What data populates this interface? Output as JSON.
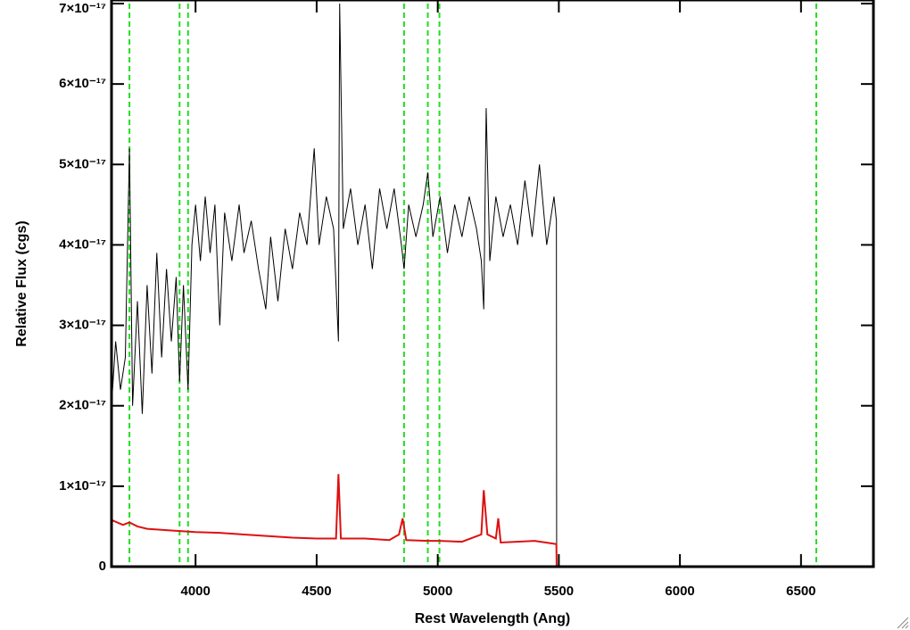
{
  "chart_data": {
    "type": "line",
    "xlabel": "Rest Wavelength (Ang)",
    "ylabel": "Relative Flux (cgs)",
    "xlim": [
      3653,
      6799
    ],
    "ylim": [
      0,
      7e-17
    ],
    "xticks": [
      4000,
      4500,
      5000,
      5500,
      6000,
      6500
    ],
    "yticks": [
      0,
      {
        "value": 1e-17,
        "label": "1×10⁻¹⁷"
      },
      {
        "value": 2e-17,
        "label": "2×10⁻¹⁷"
      },
      {
        "value": 3e-17,
        "label": "3×10⁻¹⁷"
      },
      {
        "value": 4e-17,
        "label": "4×10⁻¹⁷"
      },
      {
        "value": 5e-17,
        "label": "5×10⁻¹⁷"
      },
      {
        "value": 6e-17,
        "label": "6×10⁻¹⁷"
      },
      {
        "value": 7e-17,
        "label": "7×10⁻¹⁷"
      }
    ],
    "vlines": [
      3727,
      3934,
      3969,
      4861,
      4959,
      5007,
      6563
    ],
    "vline_color": "#22dd22",
    "series": [
      {
        "color": "#000000",
        "x": [
          3653,
          3670,
          3690,
          3710,
          3727,
          3740,
          3760,
          3780,
          3800,
          3820,
          3840,
          3860,
          3880,
          3900,
          3920,
          3934,
          3950,
          3969,
          3985,
          4000,
          4020,
          4040,
          4060,
          4080,
          4100,
          4120,
          4150,
          4180,
          4200,
          4230,
          4260,
          4290,
          4310,
          4340,
          4370,
          4400,
          4430,
          4460,
          4490,
          4510,
          4540,
          4570,
          4590,
          4595,
          4610,
          4640,
          4670,
          4700,
          4730,
          4760,
          4790,
          4820,
          4850,
          4861,
          4880,
          4910,
          4940,
          4959,
          4980,
          5010,
          5040,
          5070,
          5100,
          5130,
          5160,
          5180,
          5190,
          5200,
          5215,
          5240,
          5270,
          5300,
          5330,
          5360,
          5390,
          5420,
          5450,
          5480,
          5490,
          5491,
          6799
        ],
        "values": [
          2e-17,
          2.8e-17,
          2.2e-17,
          2.6e-17,
          5.2e-17,
          2e-17,
          3.3e-17,
          1.9e-17,
          3.5e-17,
          2.4e-17,
          3.9e-17,
          2.6e-17,
          3.7e-17,
          2.8e-17,
          3.6e-17,
          2.3e-17,
          3.5e-17,
          2.2e-17,
          4e-17,
          4.5e-17,
          3.8e-17,
          4.6e-17,
          3.9e-17,
          4.5e-17,
          3e-17,
          4.4e-17,
          3.8e-17,
          4.5e-17,
          3.9e-17,
          4.3e-17,
          3.7e-17,
          3.2e-17,
          4.1e-17,
          3.3e-17,
          4.2e-17,
          3.7e-17,
          4.4e-17,
          4e-17,
          5.2e-17,
          4e-17,
          4.6e-17,
          4.2e-17,
          2.8e-17,
          7e-17,
          4.2e-17,
          4.7e-17,
          4e-17,
          4.5e-17,
          3.7e-17,
          4.7e-17,
          4.2e-17,
          4.7e-17,
          4e-17,
          3.7e-17,
          4.5e-17,
          4.1e-17,
          4.5e-17,
          4.9e-17,
          4.1e-17,
          4.6e-17,
          3.9e-17,
          4.5e-17,
          4.1e-17,
          4.6e-17,
          4.2e-17,
          3.8e-17,
          3.2e-17,
          5.7e-17,
          3.8e-17,
          4.6e-17,
          4.1e-17,
          4.5e-17,
          4e-17,
          4.8e-17,
          4.1e-17,
          5e-17,
          4e-17,
          4.6e-17,
          4.3e-17,
          0,
          0
        ]
      },
      {
        "color": "#dd1111",
        "x": [
          3653,
          3700,
          3727,
          3760,
          3800,
          3900,
          4000,
          4100,
          4200,
          4300,
          4400,
          4500,
          4580,
          4590,
          4600,
          4700,
          4800,
          4840,
          4855,
          4870,
          4959,
          5007,
          5100,
          5180,
          5190,
          5205,
          5240,
          5250,
          5260,
          5400,
          5490,
          5491,
          6799
        ],
        "values": [
          5.8e-18,
          5.2e-18,
          5.5e-18,
          5e-18,
          4.7e-18,
          4.5e-18,
          4.3e-18,
          4.2e-18,
          4e-18,
          3.8e-18,
          3.6e-18,
          3.5e-18,
          3.5e-18,
          1.15e-17,
          3.5e-18,
          3.5e-18,
          3.3e-18,
          4e-18,
          6e-18,
          3.3e-18,
          3.2e-18,
          3.2e-18,
          3.1e-18,
          4e-18,
          9.5e-18,
          4e-18,
          3.5e-18,
          6e-18,
          3e-18,
          3.2e-18,
          2.8e-18,
          0,
          0
        ]
      }
    ]
  }
}
